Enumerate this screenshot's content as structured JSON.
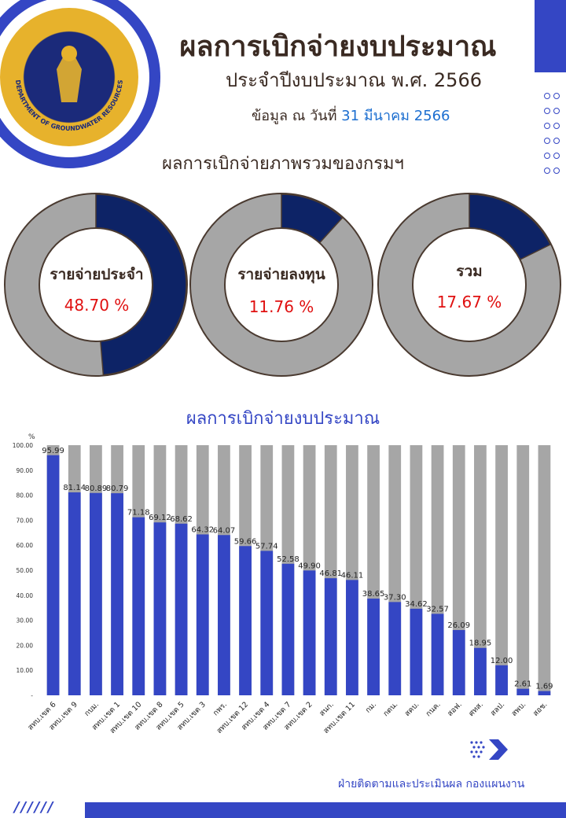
{
  "header": {
    "title": "ผลการเบิกจ่ายงบประมาณ",
    "subtitle": "ประจำปีงบประมาณ พ.ศ. 2566",
    "date_prefix": "ข้อมูล ณ วันที่",
    "date": "31 มีนาคม 2566",
    "logo_text": "DEPARTMENT OF GROUNDWATER RESOURCES"
  },
  "overall": {
    "section_title": "ผลการเบิกจ่ายภาพรวมของกรมฯ",
    "donuts": [
      {
        "label": "รายจ่ายประจำ",
        "value": 48.7,
        "display": "48.70 %"
      },
      {
        "label": "รายจ่ายลงทุน",
        "value": 11.76,
        "display": "11.76 %"
      },
      {
        "label": "รวม",
        "value": 17.67,
        "display": "17.67 %"
      }
    ],
    "colors": {
      "filled": "#0d2366",
      "remaining": "#a6a6a6"
    }
  },
  "chart_data": {
    "type": "bar",
    "title": "ผลการเบิกจ่ายงบประมาณ",
    "ylabel": "%",
    "ylim": [
      0,
      100
    ],
    "yticks": [
      "-",
      "10.00",
      "20.00",
      "30.00",
      "40.00",
      "50.00",
      "60.00",
      "70.00",
      "80.00",
      "90.00",
      "100.00"
    ],
    "categories": [
      "สทบ.เขต 6",
      "สทบ.เขต 9",
      "กบม.",
      "สทบ.เขต 1",
      "สทบ.เขต 10",
      "สทบ.เขต 8",
      "สทบ.เขต 5",
      "สทบ.เขต 3",
      "กพร.",
      "สทบ.เขต 12",
      "สทบ.เขต 4",
      "สทบ.เขต 7",
      "สทบ.เขต 2",
      "สนก.",
      "สทบ.เขต 11",
      "กม.",
      "กตน.",
      "สคบ.",
      "กนค.",
      "สอฟ.",
      "ศทส.",
      "สลป.",
      "สพบ.",
      "สอช."
    ],
    "values": [
      95.99,
      81.14,
      80.89,
      80.79,
      71.18,
      69.12,
      68.62,
      64.32,
      64.07,
      59.66,
      57.74,
      52.58,
      49.9,
      46.81,
      46.11,
      38.65,
      37.3,
      34.62,
      32.57,
      26.09,
      18.95,
      12.0,
      2.61,
      1.69
    ],
    "labels": [
      "95.99",
      "81.14",
      "80.89",
      "80.79",
      "71.18",
      "69.12",
      "68.62",
      "64.32",
      "64.07",
      "59.66",
      "57.74",
      "52.58",
      "49.90",
      "46.81",
      "46.11",
      "38.65",
      "37.30",
      "34.62",
      "32.57",
      "26.09",
      "18.95",
      "12.00",
      "2.61",
      "1.69"
    ],
    "colors": {
      "bar": "#3446c4",
      "background": "#a6a6a6"
    }
  },
  "footer": {
    "text": "ฝ่ายติดตามและประเมินผล กองแผนงาน",
    "slashes": "//////"
  }
}
